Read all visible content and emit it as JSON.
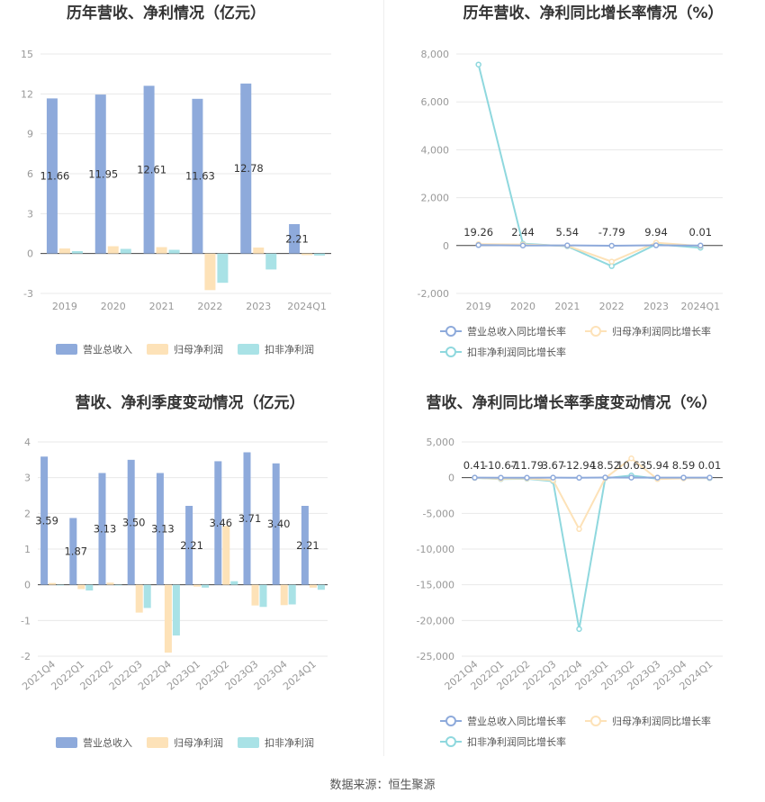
{
  "source_text": "数据来源：恒生聚源",
  "colors": {
    "revenue": "#8eaadb",
    "net_profit": "#fde2b8",
    "deducted_profit": "#a9e2e6",
    "rev_line": "#8eaadb",
    "np_line": "#fde2b8",
    "dp_line": "#8fd8de",
    "grid": "#e8e8e8",
    "axis": "#444444"
  },
  "chart_data": [
    {
      "type": "bar",
      "title": "历年营收、净利情况（亿元）",
      "categories": [
        "2019",
        "2020",
        "2021",
        "2022",
        "2023",
        "2024Q1"
      ],
      "series": [
        {
          "name": "营业总收入",
          "values": [
            11.66,
            11.95,
            12.61,
            11.63,
            12.78,
            2.21
          ]
        },
        {
          "name": "归母净利润",
          "values": [
            0.38,
            0.55,
            0.48,
            -2.75,
            0.45,
            -0.12
          ]
        },
        {
          "name": "扣非净利润",
          "values": [
            0.18,
            0.35,
            0.28,
            -2.2,
            -1.2,
            -0.15
          ]
        }
      ],
      "data_labels": [
        "11.66",
        "11.95",
        "12.61",
        "11.63",
        "12.78",
        "2.21"
      ],
      "yticks": [
        "15",
        "12",
        "9",
        "6",
        "3",
        "0",
        "-3"
      ],
      "ylim": [
        -3,
        15
      ],
      "legend_position": "bottom"
    },
    {
      "type": "line",
      "title": "历年营收、净利同比增长率情况（%）",
      "categories": [
        "2019",
        "2020",
        "2021",
        "2022",
        "2023",
        "2024Q1"
      ],
      "series": [
        {
          "name": "营业总收入同比增长率",
          "values": [
            19.26,
            2.44,
            5.54,
            -7.79,
            9.94,
            0.01
          ]
        },
        {
          "name": "归母净利润同比增长率",
          "values": [
            60,
            45,
            -10,
            -670,
            120,
            -20
          ]
        },
        {
          "name": "扣非净利润同比增长率",
          "values": [
            7560,
            80,
            -30,
            -860,
            50,
            -90
          ]
        }
      ],
      "data_labels": [
        "19.26",
        "2.44",
        "5.54",
        "-7.79",
        "9.94",
        "0.01"
      ],
      "yticks": [
        "8,000",
        "6,000",
        "4,000",
        "2,000",
        "0",
        "-2,000"
      ],
      "ylim": [
        -2000,
        8000
      ],
      "legend_position": "bottom"
    },
    {
      "type": "bar",
      "title": "营收、净利季度变动情况（亿元）",
      "categories": [
        "2021Q4",
        "2022Q1",
        "2022Q2",
        "2022Q3",
        "2022Q4",
        "2023Q1",
        "2023Q2",
        "2023Q3",
        "2023Q4",
        "2024Q1"
      ],
      "series": [
        {
          "name": "营业总收入",
          "values": [
            3.59,
            1.87,
            3.13,
            3.5,
            3.13,
            2.21,
            3.46,
            3.71,
            3.4,
            2.21
          ]
        },
        {
          "name": "归母净利润",
          "values": [
            0.05,
            -0.12,
            0.06,
            -0.78,
            -1.9,
            -0.05,
            1.65,
            -0.58,
            -0.57,
            -0.08
          ]
        },
        {
          "name": "扣非净利润",
          "values": [
            0.0,
            -0.16,
            0.0,
            -0.65,
            -1.42,
            -0.08,
            0.1,
            -0.62,
            -0.55,
            -0.14
          ]
        }
      ],
      "data_labels": [
        "3.59",
        "1.87",
        "3.13",
        "3.50",
        "3.13",
        "2.21",
        "3.46",
        "3.71",
        "3.40",
        "2.21"
      ],
      "yticks": [
        "4",
        "3",
        "2",
        "1",
        "0",
        "-1",
        "-2"
      ],
      "ylim": [
        -2,
        4
      ],
      "legend_position": "bottom"
    },
    {
      "type": "line",
      "title": "营收、净利同比增长率季度变动情况（%）",
      "categories": [
        "2021Q4",
        "2022Q1",
        "2022Q2",
        "2022Q3",
        "2022Q4",
        "2023Q1",
        "2023Q2",
        "2023Q3",
        "2023Q4",
        "2024Q1"
      ],
      "series": [
        {
          "name": "营业总收入同比增长率",
          "values": [
            0.41,
            -10.67,
            -11.79,
            3.67,
            -12.94,
            18.52,
            10.63,
            5.94,
            8.59,
            0.01
          ]
        },
        {
          "name": "归母净利润同比增长率",
          "values": [
            -20,
            -150,
            -100,
            -350,
            -7200,
            -60,
            2700,
            -200,
            -100,
            -40
          ]
        },
        {
          "name": "扣非净利润同比增长率",
          "values": [
            -30,
            -200,
            -150,
            -500,
            -21200,
            -80,
            300,
            -150,
            -60,
            -60
          ]
        }
      ],
      "data_labels": [
        "0.41",
        "-10.67",
        "-11.79",
        "3.67",
        "-12.94",
        "18.52",
        "10.63",
        "5.94",
        "8.59",
        "0.01"
      ],
      "yticks": [
        "5,000",
        "0",
        "-5,000",
        "-10,000",
        "-15,000",
        "-20,000",
        "-25,000"
      ],
      "ylim": [
        -25000,
        5000
      ],
      "legend_position": "bottom"
    }
  ]
}
